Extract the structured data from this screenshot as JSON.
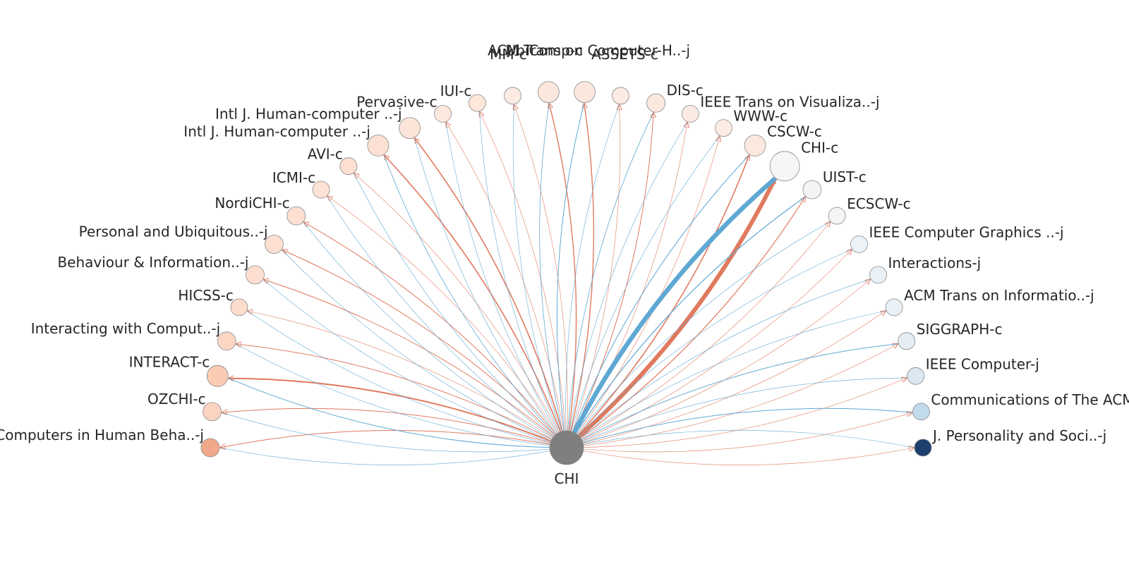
{
  "center": {
    "label": "CHI",
    "color": "#7f7f7f"
  },
  "colors": {
    "out": "#e07a5f",
    "in": "#5ea8d3"
  },
  "nodes": [
    {
      "label": "Computers in Human Beha..-j",
      "color": "#f2a88a",
      "out": 1.0,
      "in": 0.6
    },
    {
      "label": "OZCHI-c",
      "color": "#fbd3c0",
      "out": 1.0,
      "in": 0.6
    },
    {
      "label": "INTERACT-c",
      "color": "#fbcbb4",
      "out": 2.0,
      "in": 1.0
    },
    {
      "label": "Interacting with Comput..-j",
      "color": "#fcd5c3",
      "out": 1.0,
      "in": 0.6
    },
    {
      "label": "HICSS-c",
      "color": "#fcdccc",
      "out": 0.6,
      "in": 0.6
    },
    {
      "label": "Behaviour & Information..-j",
      "color": "#fddfd1",
      "out": 1.0,
      "in": 0.6
    },
    {
      "label": "Personal and Ubiquitous..-j",
      "color": "#fde0d2",
      "out": 1.0,
      "in": 0.6
    },
    {
      "label": "NordiCHI-c",
      "color": "#fde0d2",
      "out": 1.0,
      "in": 0.6
    },
    {
      "label": "ICMI-c",
      "color": "#fde2d6",
      "out": 0.6,
      "in": 0.6
    },
    {
      "label": "AVI-c",
      "color": "#fde0d2",
      "out": 0.6,
      "in": 0.6
    },
    {
      "label": "Intl J. Human-computer ..-j",
      "color": "#fde1d4",
      "out": 1.6,
      "in": 0.8
    },
    {
      "label": "Intl J. Human-computer ..-j",
      "color": "#fbe4d8",
      "out": 1.6,
      "in": 0.6
    },
    {
      "label": "Pervasive-c",
      "color": "#fde8dd",
      "out": 0.6,
      "in": 0.6
    },
    {
      "label": "IUI-c",
      "color": "#fde6da",
      "out": 0.6,
      "in": 0.6
    },
    {
      "label": "MM-c",
      "color": "#fbebe3",
      "out": 0.6,
      "in": 0.6
    },
    {
      "label": "UbiComp-c",
      "color": "#fbe7dd",
      "out": 1.4,
      "in": 0.8
    },
    {
      "label": "ACM Trans on Computer-H..-j",
      "color": "#fbe7dd",
      "out": 1.4,
      "in": 1.0
    },
    {
      "label": "ASSETS-c",
      "color": "#fbebe3",
      "out": 0.6,
      "in": 0.6
    },
    {
      "label": "DIS-c",
      "color": "#fbe9df",
      "out": 1.0,
      "in": 0.8
    },
    {
      "label": "IEEE Trans on Visualiza..-j",
      "color": "#fbebe3",
      "out": 0.6,
      "in": 0.6
    },
    {
      "label": "WWW-c",
      "color": "#fbece4",
      "out": 0.6,
      "in": 0.6
    },
    {
      "label": "CSCW-c",
      "color": "#fbe8de",
      "out": 1.6,
      "in": 1.0
    },
    {
      "label": "CHI-c",
      "color": "#f6f6f6",
      "out": 6.0,
      "in": 6.5
    },
    {
      "label": "UIST-c",
      "color": "#f2f4f6",
      "out": 1.2,
      "in": 1.2
    },
    {
      "label": "ECSCW-c",
      "color": "#f4f5f6",
      "out": 0.6,
      "in": 0.6
    },
    {
      "label": "IEEE Computer Graphics ..-j",
      "color": "#edf2f6",
      "out": 0.6,
      "in": 0.6
    },
    {
      "label": "Interactions-j",
      "color": "#e9f0f6",
      "out": 0.6,
      "in": 0.6
    },
    {
      "label": "ACM Trans on Informatio..-j",
      "color": "#e9f0f6",
      "out": 0.6,
      "in": 0.6
    },
    {
      "label": "SIGGRAPH-c",
      "color": "#e6eef4",
      "out": 0.6,
      "in": 1.0
    },
    {
      "label": "IEEE Computer-j",
      "color": "#dbe8f2",
      "out": 0.6,
      "in": 0.6
    },
    {
      "label": "Communications of The ACM-j",
      "color": "#c2dbec",
      "out": 0.6,
      "in": 1.0
    },
    {
      "label": "J. Personality and Soci..-j",
      "color": "#1c3f6e",
      "out": 0.6,
      "in": 0.6
    }
  ]
}
